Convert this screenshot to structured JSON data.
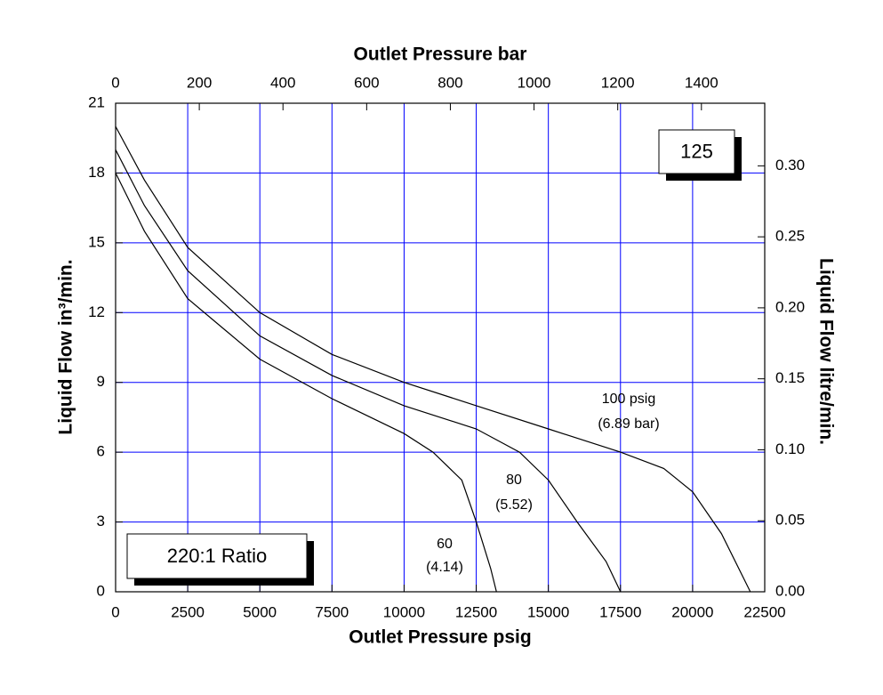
{
  "chart_data": {
    "type": "line",
    "x_label": "Outlet Pressure psig",
    "x2_label": "Outlet Pressure bar",
    "y_label": "Liquid Flow in³/min.",
    "y2_label": "Liquid Flow litre/min.",
    "xlim": [
      0,
      22500
    ],
    "xticks": [
      0,
      2500,
      5000,
      7500,
      10000,
      12500,
      15000,
      17500,
      20000,
      22500
    ],
    "x2lim": [
      0,
      1551.3
    ],
    "x2ticks": [
      0,
      200,
      400,
      600,
      800,
      1000,
      1200,
      1400
    ],
    "ylim": [
      0,
      21
    ],
    "yticks": [
      0,
      3,
      6,
      9,
      12,
      15,
      18,
      21
    ],
    "y2lim": [
      0,
      0.3441
    ],
    "y2ticks": [
      {
        "value": 0,
        "label": "0.00"
      },
      {
        "value": 0.05,
        "label": "0.05"
      },
      {
        "value": 0.1,
        "label": "0.10"
      },
      {
        "value": 0.15,
        "label": "0.15"
      },
      {
        "value": 0.2,
        "label": "0.20"
      },
      {
        "value": 0.25,
        "label": "0.25"
      },
      {
        "value": 0.3,
        "label": "0.30"
      }
    ],
    "grid": true,
    "grid_color": "#0000ff",
    "annotations": [
      "125",
      "220:1 Ratio"
    ],
    "annotation_colors": [
      "#000000",
      "#ff0000"
    ],
    "series": [
      {
        "name": "100 psig",
        "sublabel": "(6.89 bar)",
        "color": "#000000",
        "x": [
          0,
          1000,
          2500,
          5000,
          7500,
          10000,
          12500,
          15000,
          17500,
          19000,
          20000,
          21000,
          22000
        ],
        "y": [
          20,
          17.7,
          14.8,
          12,
          10.2,
          9,
          8,
          7,
          6,
          5.3,
          4.3,
          2.5,
          0
        ]
      },
      {
        "name": "80",
        "sublabel": "(5.52)",
        "color": "#000000",
        "x": [
          0,
          1000,
          2500,
          5000,
          7500,
          10000,
          12500,
          14000,
          15000,
          16000,
          17000,
          17500
        ],
        "y": [
          19,
          16.6,
          13.8,
          11,
          9.3,
          8,
          7,
          6,
          4.8,
          3,
          1.3,
          0
        ]
      },
      {
        "name": "60",
        "sublabel": "(4.14)",
        "color": "#000000",
        "x": [
          0,
          1000,
          2500,
          5000,
          7500,
          10000,
          11000,
          12000,
          12500,
          13000,
          13200
        ],
        "y": [
          18,
          15.5,
          12.6,
          10,
          8.3,
          6.8,
          6,
          4.8,
          3,
          1,
          0
        ]
      }
    ]
  }
}
